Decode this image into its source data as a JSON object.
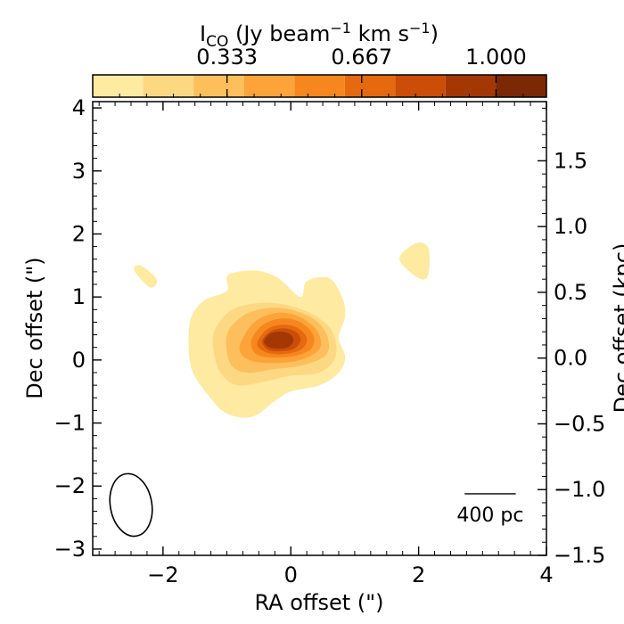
{
  "chart_data": {
    "type": "heatmap",
    "title": "",
    "colorbar": {
      "label_main": "I",
      "label_sub": "CO",
      "label_unit_a": " (Jy beam",
      "label_sup_a": "−1",
      "label_unit_b": " km s",
      "label_sup_b": "−1",
      "label_close": ")",
      "range": [
        0.0,
        1.125
      ],
      "levels": [
        0.0,
        0.125,
        0.25,
        0.375,
        0.5,
        0.625,
        0.75,
        0.875,
        1.0,
        1.125
      ],
      "colors": [
        "#feeaa1",
        "#fdd883",
        "#fdbf5c",
        "#fca43a",
        "#f6871f",
        "#e4690f",
        "#cb4d08",
        "#a43805",
        "#7b2905"
      ],
      "tick_values": [
        0.333,
        0.667,
        1.0
      ],
      "tick_labels": [
        "0.333",
        "0.667",
        "1.000"
      ]
    },
    "xlabel": "RA offset (\")",
    "ylabel": "Dec offset (\")",
    "ylabel_right": "Dec offset (kpc)",
    "xlim": [
      -3.1,
      4.0
    ],
    "ylim": [
      -3.1,
      4.1
    ],
    "ylim_right": [
      -1.5,
      1.95
    ],
    "x_ticks": [
      -2,
      0,
      2,
      4
    ],
    "x_tick_labels": [
      "−2",
      "0",
      "2",
      "4"
    ],
    "y_ticks": [
      -3,
      -2,
      -1,
      0,
      1,
      2,
      3,
      4
    ],
    "y_tick_labels": [
      "−3",
      "−2",
      "−1",
      "0",
      "1",
      "2",
      "3",
      "4"
    ],
    "y_right_ticks": [
      -1.5,
      -1.0,
      -0.5,
      0.0,
      0.5,
      1.0,
      1.5
    ],
    "y_right_tick_labels": [
      "−1.5",
      "−1.0",
      "−0.5",
      "0.0",
      "0.5",
      "1.0",
      "1.5"
    ],
    "contours": [
      {
        "level": 1,
        "points": [
          [
            -1.55,
            0.7
          ],
          [
            -1.35,
            0.95
          ],
          [
            -1.0,
            1.1
          ],
          [
            -0.98,
            1.35
          ],
          [
            -0.55,
            1.42
          ],
          [
            -0.2,
            1.3
          ],
          [
            0.15,
            1.0
          ],
          [
            0.25,
            1.25
          ],
          [
            0.6,
            1.3
          ],
          [
            0.8,
            1.0
          ],
          [
            0.85,
            0.7
          ],
          [
            0.75,
            0.35
          ],
          [
            0.85,
            0.05
          ],
          [
            0.75,
            -0.2
          ],
          [
            0.45,
            -0.4
          ],
          [
            0.0,
            -0.5
          ],
          [
            -0.25,
            -0.65
          ],
          [
            -0.6,
            -0.9
          ],
          [
            -1.0,
            -0.85
          ],
          [
            -1.3,
            -0.55
          ],
          [
            -1.55,
            -0.15
          ],
          [
            -1.6,
            0.35
          ]
        ]
      },
      {
        "level": 2,
        "points": [
          [
            -1.2,
            0.45
          ],
          [
            -0.95,
            0.78
          ],
          [
            -0.55,
            0.9
          ],
          [
            -0.1,
            0.88
          ],
          [
            0.35,
            0.72
          ],
          [
            0.65,
            0.45
          ],
          [
            0.7,
            0.05
          ],
          [
            0.45,
            -0.2
          ],
          [
            0.0,
            -0.25
          ],
          [
            -0.45,
            -0.35
          ],
          [
            -0.85,
            -0.4
          ],
          [
            -1.1,
            -0.2
          ],
          [
            -1.2,
            0.1
          ]
        ]
      },
      {
        "level": 3,
        "points": [
          [
            -1.0,
            0.4
          ],
          [
            -0.75,
            0.7
          ],
          [
            -0.4,
            0.82
          ],
          [
            0.0,
            0.8
          ],
          [
            0.4,
            0.62
          ],
          [
            0.58,
            0.35
          ],
          [
            0.55,
            0.08
          ],
          [
            0.2,
            -0.08
          ],
          [
            -0.3,
            -0.15
          ],
          [
            -0.7,
            -0.2
          ],
          [
            -0.95,
            -0.05
          ]
        ]
      },
      {
        "level": 4,
        "points": [
          [
            -0.75,
            0.35
          ],
          [
            -0.55,
            0.62
          ],
          [
            -0.2,
            0.75
          ],
          [
            0.15,
            0.68
          ],
          [
            0.42,
            0.45
          ],
          [
            0.45,
            0.18
          ],
          [
            0.15,
            0.0
          ],
          [
            -0.3,
            -0.05
          ],
          [
            -0.65,
            0.0
          ],
          [
            -0.8,
            0.15
          ]
        ]
      },
      {
        "level": 5,
        "points": [
          [
            -0.62,
            0.3
          ],
          [
            -0.45,
            0.55
          ],
          [
            -0.15,
            0.66
          ],
          [
            0.15,
            0.6
          ],
          [
            0.35,
            0.4
          ],
          [
            0.32,
            0.18
          ],
          [
            0.05,
            0.06
          ],
          [
            -0.3,
            0.04
          ],
          [
            -0.55,
            0.1
          ]
        ]
      },
      {
        "level": 6,
        "points": [
          [
            -0.52,
            0.3
          ],
          [
            -0.35,
            0.5
          ],
          [
            -0.1,
            0.56
          ],
          [
            0.12,
            0.5
          ],
          [
            0.25,
            0.35
          ],
          [
            0.18,
            0.18
          ],
          [
            -0.05,
            0.1
          ],
          [
            -0.3,
            0.1
          ],
          [
            -0.48,
            0.17
          ]
        ]
      },
      {
        "level": 7,
        "points": [
          [
            -0.45,
            0.3
          ],
          [
            -0.3,
            0.46
          ],
          [
            -0.08,
            0.5
          ],
          [
            0.1,
            0.43
          ],
          [
            0.15,
            0.3
          ],
          [
            0.05,
            0.18
          ],
          [
            -0.15,
            0.14
          ],
          [
            -0.35,
            0.16
          ]
        ]
      },
      {
        "level": 8,
        "points": [
          [
            -0.42,
            0.3
          ],
          [
            -0.32,
            0.42
          ],
          [
            -0.15,
            0.45
          ],
          [
            0.0,
            0.4
          ],
          [
            0.04,
            0.3
          ],
          [
            -0.05,
            0.2
          ],
          [
            -0.22,
            0.18
          ],
          [
            -0.36,
            0.21
          ]
        ]
      }
    ],
    "islands": [
      {
        "level": 1,
        "points": [
          [
            -2.45,
            1.42
          ],
          [
            -2.35,
            1.5
          ],
          [
            -2.1,
            1.28
          ],
          [
            -2.2,
            1.15
          ]
        ]
      },
      {
        "level": 1,
        "points": [
          [
            1.7,
            1.6
          ],
          [
            1.95,
            1.85
          ],
          [
            2.15,
            1.78
          ],
          [
            2.15,
            1.35
          ],
          [
            2.0,
            1.3
          ]
        ]
      }
    ],
    "beam": {
      "center": [
        -2.5,
        -2.3
      ],
      "major_arcsec": 1.0,
      "minor_arcsec": 0.65,
      "pa_deg": 10
    },
    "scalebar": {
      "length_pc": 400,
      "label": "400 pc",
      "x_start": 2.72,
      "x_end": 3.52,
      "y": -2.35
    }
  }
}
